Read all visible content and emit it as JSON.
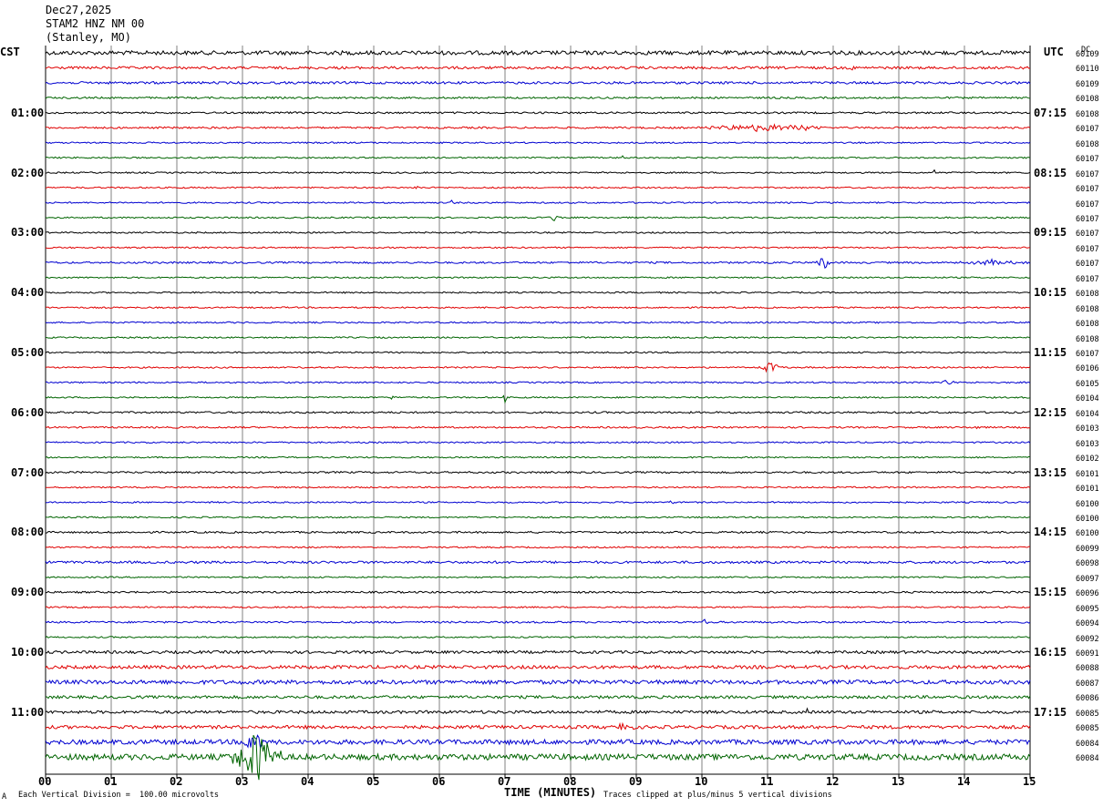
{
  "header": {
    "date": "Dec27,2025",
    "station": "STAM2 HNZ NM 00",
    "location": "(Stanley, MO)"
  },
  "left_tz": "CST",
  "right_tz": "UTC",
  "dc_header": "DC",
  "footer": {
    "scale_note": "Each Vertical Division =  100.00 microvolts",
    "clip_note": "Traces clipped at plus/minus 5 vertical divisions",
    "corner_mark": "A"
  },
  "colors": {
    "trace_cycle": [
      "#000000",
      "#e00000",
      "#0000d0",
      "#006400"
    ],
    "grid": "#808080"
  },
  "chart_data": {
    "type": "line",
    "title": "",
    "xlabel": "TIME (MINUTES)",
    "xlim": [
      0,
      15
    ],
    "x_ticks": [
      "00",
      "01",
      "02",
      "03",
      "04",
      "05",
      "06",
      "07",
      "08",
      "09",
      "10",
      "11",
      "12",
      "13",
      "14",
      "15"
    ],
    "rows": 48,
    "left_time_labels": [
      {
        "row": 4,
        "text": "01:00"
      },
      {
        "row": 8,
        "text": "02:00"
      },
      {
        "row": 12,
        "text": "03:00"
      },
      {
        "row": 16,
        "text": "04:00"
      },
      {
        "row": 20,
        "text": "05:00"
      },
      {
        "row": 24,
        "text": "06:00"
      },
      {
        "row": 28,
        "text": "07:00"
      },
      {
        "row": 32,
        "text": "08:00"
      },
      {
        "row": 36,
        "text": "09:00"
      },
      {
        "row": 40,
        "text": "10:00"
      },
      {
        "row": 44,
        "text": "11:00"
      }
    ],
    "right_time_labels": [
      {
        "row": 4,
        "text": "07:15"
      },
      {
        "row": 8,
        "text": "08:15"
      },
      {
        "row": 12,
        "text": "09:15"
      },
      {
        "row": 16,
        "text": "10:15"
      },
      {
        "row": 20,
        "text": "11:15"
      },
      {
        "row": 24,
        "text": "12:15"
      },
      {
        "row": 28,
        "text": "13:15"
      },
      {
        "row": 32,
        "text": "14:15"
      },
      {
        "row": 36,
        "text": "15:15"
      },
      {
        "row": 40,
        "text": "16:15"
      },
      {
        "row": 44,
        "text": "17:15"
      }
    ],
    "dc_values": [
      "60109",
      "60110",
      "60109",
      "60108",
      "60108",
      "60107",
      "60108",
      "60107",
      "60107",
      "60107",
      "60107",
      "60107",
      "60107",
      "60107",
      "60107",
      "60107",
      "60108",
      "60108",
      "60108",
      "60108",
      "60107",
      "60106",
      "60105",
      "60104",
      "60104",
      "60103",
      "60103",
      "60102",
      "60101",
      "60101",
      "60100",
      "60100",
      "60100",
      "60099",
      "60098",
      "60097",
      "60096",
      "60095",
      "60094",
      "60092",
      "60091",
      "60088",
      "60087",
      "60086",
      "60085",
      "60085",
      "60084",
      "60084"
    ],
    "noise_levels": [
      2.2,
      1.4,
      1.3,
      1.0,
      1.0,
      1.0,
      0.8,
      0.8,
      0.8,
      0.8,
      0.8,
      0.8,
      0.8,
      0.8,
      1.0,
      0.8,
      0.8,
      0.8,
      0.8,
      0.8,
      0.8,
      0.8,
      0.8,
      0.8,
      1.0,
      0.9,
      0.8,
      0.8,
      1.0,
      0.8,
      0.8,
      0.8,
      1.0,
      0.8,
      1.3,
      0.8,
      1.0,
      0.8,
      1.0,
      0.8,
      1.5,
      1.8,
      2.2,
      1.6,
      1.6,
      1.8,
      2.6,
      3.2
    ],
    "events": [
      {
        "row": 1,
        "minute": 12.3,
        "amp": 7,
        "dur": 0.02
      },
      {
        "row": 5,
        "minute": 11.0,
        "amp": 4,
        "dur": 1.2
      },
      {
        "row": 7,
        "minute": 8.8,
        "amp": 5,
        "dur": 0.03
      },
      {
        "row": 8,
        "minute": 13.55,
        "amp": 11,
        "dur": 0.02
      },
      {
        "row": 9,
        "minute": 5.65,
        "amp": 5,
        "dur": 0.03
      },
      {
        "row": 10,
        "minute": 6.2,
        "amp": 4,
        "dur": 0.04
      },
      {
        "row": 11,
        "minute": 7.75,
        "amp": 4,
        "dur": 0.1
      },
      {
        "row": 14,
        "minute": 11.85,
        "amp": 9,
        "dur": 0.12
      },
      {
        "row": 14,
        "minute": 14.4,
        "amp": 3,
        "dur": 0.6
      },
      {
        "row": 21,
        "minute": 11.05,
        "amp": 6,
        "dur": 0.2
      },
      {
        "row": 22,
        "minute": 13.75,
        "amp": 4,
        "dur": 0.1
      },
      {
        "row": 23,
        "minute": 5.3,
        "amp": 4,
        "dur": 0.05
      },
      {
        "row": 23,
        "minute": 7.0,
        "amp": 5,
        "dur": 0.03
      },
      {
        "row": 25,
        "minute": 14.2,
        "amp": 3,
        "dur": 0.05
      },
      {
        "row": 30,
        "minute": 9.55,
        "amp": 4,
        "dur": 0.05
      },
      {
        "row": 38,
        "minute": 10.05,
        "amp": 3,
        "dur": 0.05
      },
      {
        "row": 44,
        "minute": 11.6,
        "amp": 5,
        "dur": 0.02
      },
      {
        "row": 45,
        "minute": 8.8,
        "amp": 3,
        "dur": 0.3
      },
      {
        "row": 46,
        "minute": 3.15,
        "amp": 14,
        "dur": 0.2
      },
      {
        "row": 47,
        "minute": 3.2,
        "amp": 28,
        "dur": 0.45
      }
    ]
  }
}
